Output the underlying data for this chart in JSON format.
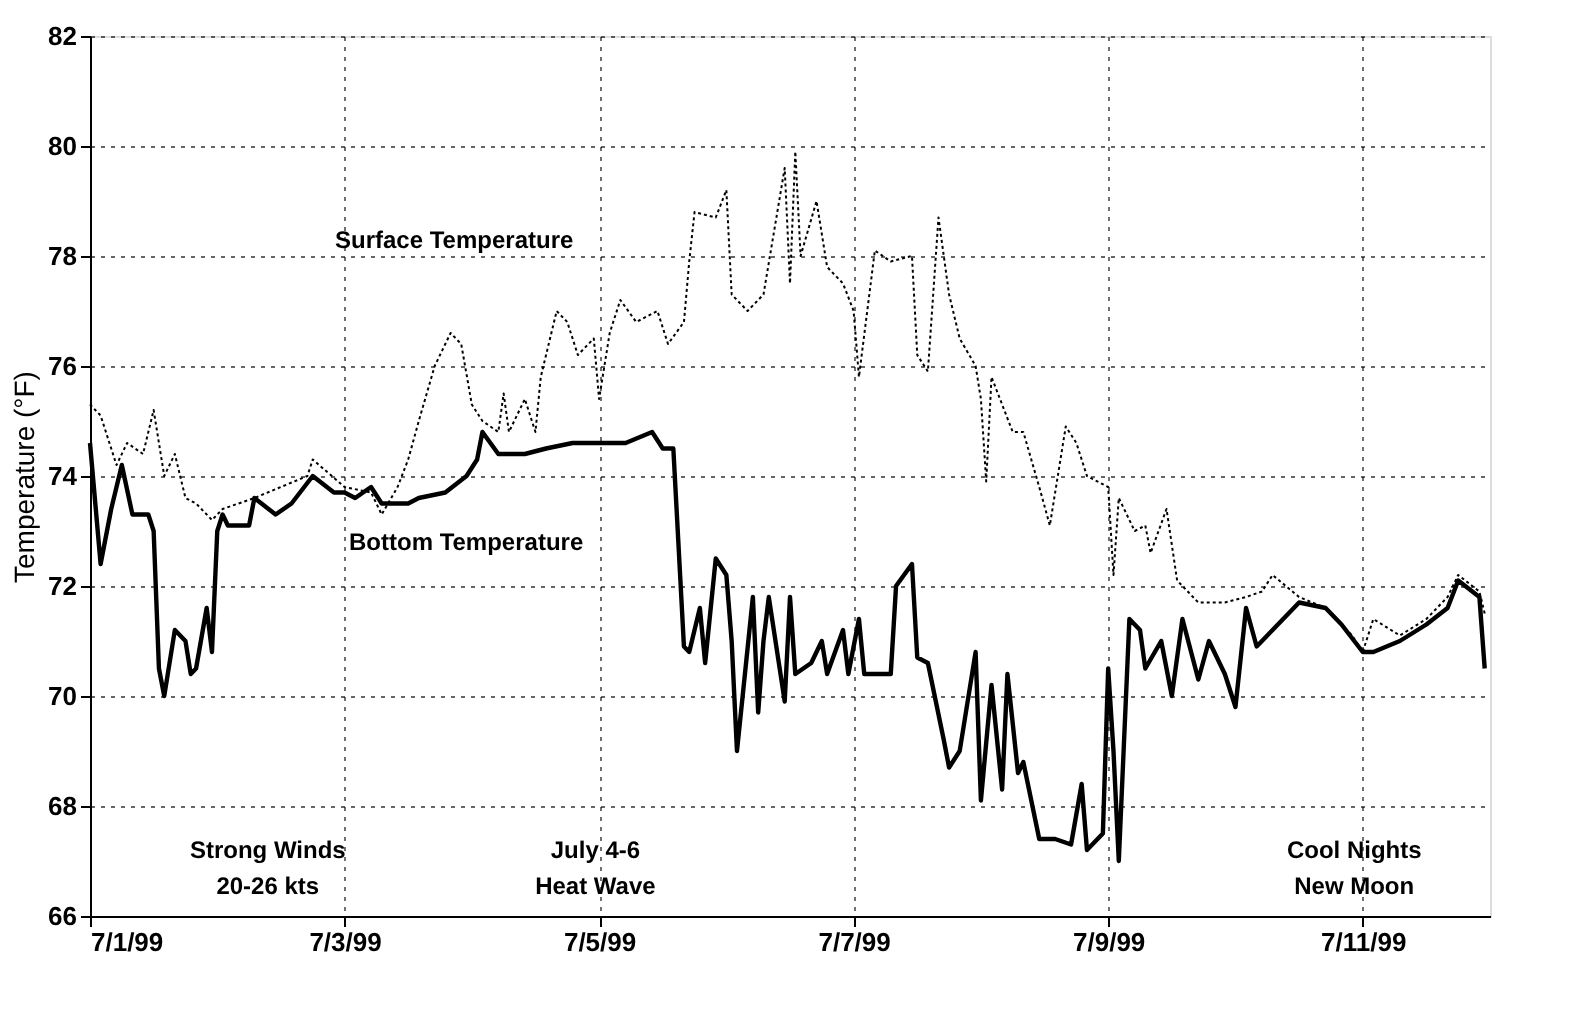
{
  "chart_data": {
    "type": "line",
    "ylabel": "Temperature (°F)",
    "xlim": [
      "1999-07-01T00:00",
      "1999-07-12T00:00"
    ],
    "xticks": [
      {
        "value": "1999-07-01",
        "label": "7/1/99"
      },
      {
        "value": "1999-07-03",
        "label": "7/3/99"
      },
      {
        "value": "1999-07-05",
        "label": "7/5/99"
      },
      {
        "value": "1999-07-07",
        "label": "7/7/99"
      },
      {
        "value": "1999-07-09",
        "label": "7/9/99"
      },
      {
        "value": "1999-07-11",
        "label": "7/11/99"
      }
    ],
    "ylim": [
      66,
      82
    ],
    "yticks": [
      66,
      68,
      70,
      72,
      74,
      76,
      78,
      80,
      82
    ],
    "grid": true,
    "annotations": [
      "Strong Winds\n20-26 kts",
      "July 4-6\nHeat Wave",
      "Cool Nights\nNew Moon"
    ],
    "series": [
      {
        "name": "Surface Temperature",
        "color": "#000000",
        "line_style": "dotted",
        "x": [
          "1999-07-01T00:00",
          "1999-07-01T02:00",
          "1999-07-01T05:00",
          "1999-07-01T07:00",
          "1999-07-01T10:00",
          "1999-07-01T12:00",
          "1999-07-01T14:00",
          "1999-07-01T16:00",
          "1999-07-01T18:00",
          "1999-07-01T20:00",
          "1999-07-01T23:00",
          "1999-07-02T01:00",
          "1999-07-02T07:00",
          "1999-07-02T17:00",
          "1999-07-02T18:00",
          "1999-07-03T00:00",
          "1999-07-03T05:00",
          "1999-07-03T07:00",
          "1999-07-03T10:00",
          "1999-07-03T12:00",
          "1999-07-03T14:00",
          "1999-07-03T17:00",
          "1999-07-03T19:00",
          "1999-07-03T20:00",
          "1999-07-03T22:00",
          "1999-07-04T00:00",
          "1999-07-04T02:00",
          "1999-07-04T05:00",
          "1999-07-04T06:00",
          "1999-07-04T07:00",
          "1999-07-04T10:00",
          "1999-07-04T12:00",
          "1999-07-04T13:00",
          "1999-07-04T16:00",
          "1999-07-04T18:00",
          "1999-07-04T20:00",
          "1999-07-04T23:00",
          "1999-07-05T00:00",
          "1999-07-05T02:00",
          "1999-07-05T04:00",
          "1999-07-05T07:00",
          "1999-07-05T11:00",
          "1999-07-05T13:00",
          "1999-07-05T16:00",
          "1999-07-05T17:00",
          "1999-07-05T18:00",
          "1999-07-05T22:00",
          "1999-07-06T00:00",
          "1999-07-06T01:00",
          "1999-07-06T04:00",
          "1999-07-06T07:00",
          "1999-07-06T11:00",
          "1999-07-06T12:00",
          "1999-07-06T13:00",
          "1999-07-06T14:00",
          "1999-07-06T17:00",
          "1999-07-06T19:00",
          "1999-07-06T22:00",
          "1999-07-07T00:00",
          "1999-07-07T01:00",
          "1999-07-07T04:00",
          "1999-07-07T07:00",
          "1999-07-07T11:00",
          "1999-07-07T12:00",
          "1999-07-07T14:00",
          "1999-07-07T16:00",
          "1999-07-07T18:00",
          "1999-07-07T20:00",
          "1999-07-07T23:00",
          "1999-07-08T00:00",
          "1999-07-08T01:00",
          "1999-07-08T02:00",
          "1999-07-08T06:00",
          "1999-07-08T08:00",
          "1999-07-08T11:00",
          "1999-07-08T13:00",
          "1999-07-08T16:00",
          "1999-07-08T18:00",
          "1999-07-08T20:00",
          "1999-07-09T00:00",
          "1999-07-09T01:00",
          "1999-07-09T02:00",
          "1999-07-09T05:00",
          "1999-07-09T07:00",
          "1999-07-09T08:00",
          "1999-07-09T11:00",
          "1999-07-09T13:00",
          "1999-07-09T17:00",
          "1999-07-09T22:00",
          "1999-07-10T02:00",
          "1999-07-10T05:00",
          "1999-07-10T07:00",
          "1999-07-10T12:00",
          "1999-07-10T17:00",
          "1999-07-10T22:00",
          "1999-07-11T00:00",
          "1999-07-11T02:00",
          "1999-07-11T07:00",
          "1999-07-11T12:00",
          "1999-07-11T16:00",
          "1999-07-11T18:00",
          "1999-07-11T22:00",
          "1999-07-11T23:00"
        ],
        "values": [
          75.3,
          75.1,
          74.2,
          74.6,
          74.4,
          75.2,
          74.0,
          74.4,
          73.6,
          73.5,
          73.2,
          73.4,
          73.6,
          74.0,
          74.3,
          73.8,
          73.7,
          73.3,
          73.8,
          74.3,
          75.0,
          76.0,
          76.4,
          76.6,
          76.4,
          75.3,
          75.0,
          74.8,
          75.5,
          74.8,
          75.4,
          74.8,
          75.8,
          77.0,
          76.8,
          76.2,
          76.5,
          75.4,
          76.6,
          77.2,
          76.8,
          77.0,
          76.4,
          76.8,
          77.9,
          78.8,
          78.7,
          79.2,
          77.3,
          77.0,
          77.3,
          79.6,
          77.5,
          79.9,
          78.0,
          79.0,
          77.8,
          77.5,
          77.0,
          75.8,
          78.1,
          77.9,
          78.0,
          76.2,
          75.9,
          78.7,
          77.3,
          76.5,
          76.0,
          75.4,
          73.9,
          75.8,
          74.8,
          74.8,
          73.8,
          73.1,
          74.9,
          74.6,
          74.0,
          73.8,
          72.2,
          73.6,
          73.0,
          73.1,
          72.6,
          73.4,
          72.1,
          71.7,
          71.7,
          71.8,
          71.9,
          72.2,
          71.8,
          71.6,
          71.1,
          70.8,
          71.4,
          71.1,
          71.4,
          71.8,
          72.2,
          71.9,
          71.5
        ]
      },
      {
        "name": "Bottom Temperature",
        "color": "#000000",
        "line_style": "solid",
        "x": [
          "1999-07-01T00:00",
          "1999-07-01T01:00",
          "1999-07-01T02:00",
          "1999-07-01T04:00",
          "1999-07-01T06:00",
          "1999-07-01T08:00",
          "1999-07-01T11:00",
          "1999-07-01T12:00",
          "1999-07-01T13:00",
          "1999-07-01T14:00",
          "1999-07-01T16:00",
          "1999-07-01T18:00",
          "1999-07-01T19:00",
          "1999-07-01T20:00",
          "1999-07-01T22:00",
          "1999-07-01T23:00",
          "1999-07-02T00:00",
          "1999-07-02T01:00",
          "1999-07-02T02:00",
          "1999-07-02T06:00",
          "1999-07-02T07:00",
          "1999-07-02T11:00",
          "1999-07-02T14:00",
          "1999-07-02T18:00",
          "1999-07-02T22:00",
          "1999-07-03T00:00",
          "1999-07-03T02:00",
          "1999-07-03T05:00",
          "1999-07-03T07:00",
          "1999-07-03T12:00",
          "1999-07-03T14:00",
          "1999-07-03T19:00",
          "1999-07-03T23:00",
          "1999-07-04T01:00",
          "1999-07-04T02:00",
          "1999-07-04T05:00",
          "1999-07-04T10:00",
          "1999-07-04T14:00",
          "1999-07-04T19:00",
          "1999-07-05T00:00",
          "1999-07-05T05:00",
          "1999-07-05T10:00",
          "1999-07-05T12:00",
          "1999-07-05T14:00",
          "1999-07-05T16:00",
          "1999-07-05T17:00",
          "1999-07-05T19:00",
          "1999-07-05T20:00",
          "1999-07-05T22:00",
          "1999-07-06T00:00",
          "1999-07-06T01:00",
          "1999-07-06T02:00",
          "1999-07-06T05:00",
          "1999-07-06T06:00",
          "1999-07-06T07:00",
          "1999-07-06T08:00",
          "1999-07-06T11:00",
          "1999-07-06T12:00",
          "1999-07-06T13:00",
          "1999-07-06T16:00",
          "1999-07-06T18:00",
          "1999-07-06T19:00",
          "1999-07-06T22:00",
          "1999-07-06T23:00",
          "1999-07-07T01:00",
          "1999-07-07T02:00",
          "1999-07-07T07:00",
          "1999-07-07T08:00",
          "1999-07-07T11:00",
          "1999-07-07T12:00",
          "1999-07-07T14:00",
          "1999-07-07T17:00",
          "1999-07-07T18:00",
          "1999-07-07T20:00",
          "1999-07-07T23:00",
          "1999-07-08T00:00",
          "1999-07-08T02:00",
          "1999-07-08T04:00",
          "1999-07-08T05:00",
          "1999-07-08T07:00",
          "1999-07-08T08:00",
          "1999-07-08T11:00",
          "1999-07-08T14:00",
          "1999-07-08T17:00",
          "1999-07-08T19:00",
          "1999-07-08T20:00",
          "1999-07-08T23:00",
          "1999-07-09T00:00",
          "1999-07-09T01:00",
          "1999-07-09T02:00",
          "1999-07-09T04:00",
          "1999-07-09T06:00",
          "1999-07-09T07:00",
          "1999-07-09T10:00",
          "1999-07-09T12:00",
          "1999-07-09T14:00",
          "1999-07-09T17:00",
          "1999-07-09T19:00",
          "1999-07-09T22:00",
          "1999-07-10T00:00",
          "1999-07-10T02:00",
          "1999-07-10T04:00",
          "1999-07-10T07:00",
          "1999-07-10T12:00",
          "1999-07-10T17:00",
          "1999-07-10T20:00",
          "1999-07-11T00:00",
          "1999-07-11T02:00",
          "1999-07-11T07:00",
          "1999-07-11T12:00",
          "1999-07-11T16:00",
          "1999-07-11T18:00",
          "1999-07-11T22:00",
          "1999-07-11T23:00"
        ],
        "values": [
          74.6,
          73.5,
          72.4,
          73.4,
          74.2,
          73.3,
          73.3,
          73.0,
          70.5,
          70.0,
          71.2,
          71.0,
          70.4,
          70.5,
          71.6,
          70.8,
          73.0,
          73.3,
          73.1,
          73.1,
          73.6,
          73.3,
          73.5,
          74.0,
          73.7,
          73.7,
          73.6,
          73.8,
          73.5,
          73.5,
          73.6,
          73.7,
          74.0,
          74.3,
          74.8,
          74.4,
          74.4,
          74.5,
          74.6,
          74.6,
          74.6,
          74.8,
          74.5,
          74.5,
          70.9,
          70.8,
          71.6,
          70.6,
          72.5,
          72.2,
          71.0,
          69.0,
          71.8,
          69.7,
          71.0,
          71.8,
          69.9,
          71.8,
          70.4,
          70.6,
          71.0,
          70.4,
          71.2,
          70.4,
          71.4,
          70.4,
          70.4,
          72.0,
          72.4,
          70.7,
          70.6,
          69.2,
          68.7,
          69.0,
          70.8,
          68.1,
          70.2,
          68.3,
          70.4,
          68.6,
          68.8,
          67.4,
          67.4,
          67.3,
          68.4,
          67.2,
          67.5,
          70.5,
          69.0,
          67.0,
          71.4,
          71.2,
          70.5,
          71.0,
          70.0,
          71.4,
          70.3,
          71.0,
          70.4,
          69.8,
          71.6,
          70.9,
          71.2,
          71.7,
          71.6,
          71.3,
          70.8,
          70.8,
          71.0,
          71.3,
          71.6,
          72.1,
          71.8,
          70.5
        ]
      }
    ]
  }
}
